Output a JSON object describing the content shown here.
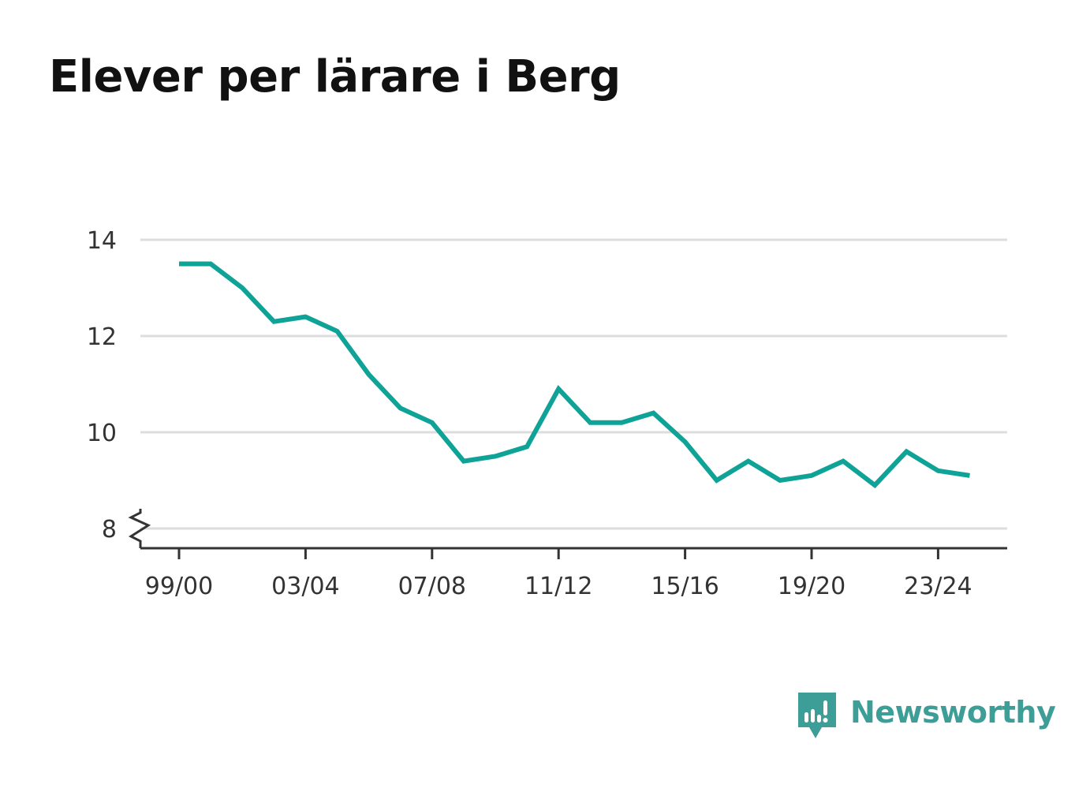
{
  "title": "Elever per lärare i Berg",
  "brand": {
    "name": "Newsworthy",
    "icon": "bar-chart-speech-bubble-icon",
    "color": "#3d9d97"
  },
  "chart_data": {
    "type": "line",
    "title": "Elever per lärare i Berg",
    "xlabel": "",
    "ylabel": "",
    "x": [
      "99/00",
      "00/01",
      "01/02",
      "02/03",
      "03/04",
      "04/05",
      "05/06",
      "06/07",
      "07/08",
      "08/09",
      "09/10",
      "10/11",
      "11/12",
      "12/13",
      "13/14",
      "14/15",
      "15/16",
      "16/17",
      "17/18",
      "18/19",
      "19/20",
      "20/21",
      "21/22",
      "22/23",
      "23/24",
      "24/25"
    ],
    "x_tick_labels": [
      "99/00",
      "03/04",
      "07/08",
      "11/12",
      "15/16",
      "19/20",
      "23/24"
    ],
    "series": [
      {
        "color": "#0fa398",
        "values": [
          13.5,
          13.5,
          13.0,
          12.3,
          12.4,
          12.1,
          11.2,
          10.5,
          10.2,
          9.4,
          9.5,
          9.7,
          10.9,
          10.2,
          10.2,
          10.4,
          9.8,
          9.0,
          9.4,
          9.0,
          9.1,
          9.4,
          8.9,
          9.6,
          9.2,
          9.1
        ]
      }
    ],
    "ylim": [
      7.6,
      14
    ],
    "yticks": [
      8,
      10,
      12,
      14
    ],
    "y_axis_break": true,
    "grid": "horizontal",
    "legend": "none"
  }
}
